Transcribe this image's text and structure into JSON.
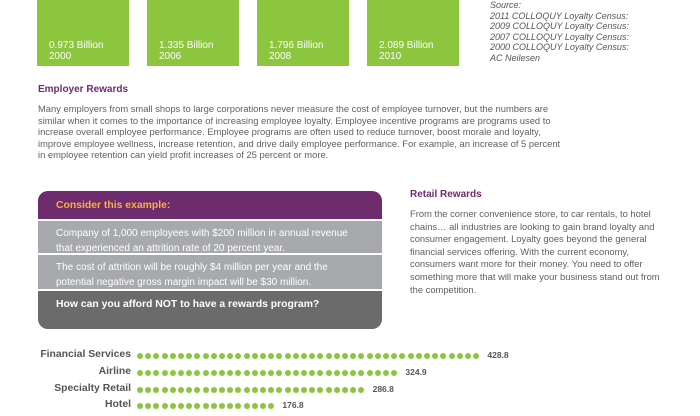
{
  "stats": [
    {
      "value": "0.973 Billion",
      "year": "2000"
    },
    {
      "value": "1.335 Billion",
      "year": "2006"
    },
    {
      "value": "1.796 Billion",
      "year": "2008"
    },
    {
      "value": "2.089 Billion",
      "year": "2010"
    }
  ],
  "source": {
    "label": "Source:",
    "lines": [
      "2011 COLLOQUY Loyalty Census:",
      "2009 COLLOQUY Loyalty Census:",
      "2007 COLLOQUY Loyalty Census:",
      "2000 COLLOQUY Loyalty Census:",
      "AC Neilesen"
    ]
  },
  "employer": {
    "title": "Employer Rewards",
    "body": "Many employers from small shops to large corporations never measure the cost of employee turnover, but the numbers are similar when it comes to the importance of increasing employee loyalty.  Employee incentive programs are programs used to increase overall employee performance. Employee programs are often used to reduce turnover, boost morale and loyalty, improve employee wellness, increase retention, and drive daily employee performance.  For example, an increase of 5 percent in employee retention can yield profit increases of 25 percent or more."
  },
  "example": {
    "header": "Consider this example:",
    "rows": [
      "Company of 1,000 employees with $200 million in annual revenue that experienced an attrition rate of 20 percent year.",
      "The cost of attrition will be roughly $4 million per year and the potential negative gross margin impact will be $30 million."
    ],
    "footer": "How can you afford NOT to have a rewards program?"
  },
  "retail": {
    "title": "Retail Rewards",
    "body": "From the corner convenience store, to car rentals, to hotel chains… all industries are looking to gain brand loyalty and consumer engagement. Loyalty goes beyond the general financial services offering. With the current economy, consumers want more for their money. You need to offer something more that will make your business stand out from the competition."
  },
  "colors": {
    "green": "#8cc63f",
    "purple": "#6d2c6d",
    "orange": "#fbb040",
    "gray": "#a7a9ac",
    "dark_gray": "#6b6b6b"
  },
  "chart_data": {
    "type": "bar",
    "categories": [
      "Financial Services",
      "Airline",
      "Specialty Retail",
      "Hotel"
    ],
    "values": [
      428.8,
      324.9,
      286.8,
      176.8
    ],
    "value_labels": [
      "428.8",
      "324.9",
      "286.8",
      "176.8"
    ],
    "style": "dotted horizontal bars",
    "title": "",
    "xlabel": "",
    "ylabel": ""
  }
}
